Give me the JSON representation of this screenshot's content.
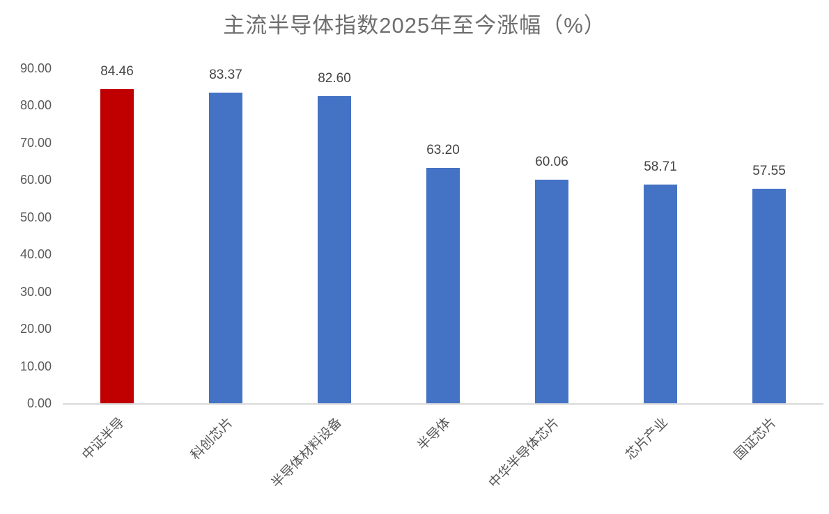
{
  "title": "主流半导体指数2025年至今涨幅（%）",
  "chart_data": {
    "type": "bar",
    "title": "主流半导体指数2025年至今涨幅（%）",
    "categories": [
      "中证半导",
      "科创芯片",
      "半导体材料设备",
      "半导体",
      "中华半导体芯片",
      "芯片产业",
      "国证芯片"
    ],
    "values": [
      84.46,
      83.37,
      82.6,
      63.2,
      60.06,
      58.71,
      57.55
    ],
    "data_labels": [
      "84.46",
      "83.37",
      "82.60",
      "63.20",
      "60.06",
      "58.71",
      "57.55"
    ],
    "bar_colors": [
      "#c00000",
      "#4472c4",
      "#4472c4",
      "#4472c4",
      "#4472c4",
      "#4472c4",
      "#4472c4"
    ],
    "xlabel": "",
    "ylabel": "",
    "ylim": [
      0,
      90
    ],
    "ytick_interval": 10,
    "ytick_labels": [
      "0.00",
      "10.00",
      "20.00",
      "30.00",
      "40.00",
      "50.00",
      "60.00",
      "70.00",
      "80.00",
      "90.00"
    ],
    "grid": false,
    "legend": false,
    "legend_position": "none",
    "highlight_color": "#c00000",
    "default_color": "#4472c4",
    "axis_line_color": "#d9d9d9",
    "axis_text_color": "#595959",
    "value_label_color": "#444444",
    "title_color": "#6e6e6e",
    "background_color": "#ffffff"
  }
}
